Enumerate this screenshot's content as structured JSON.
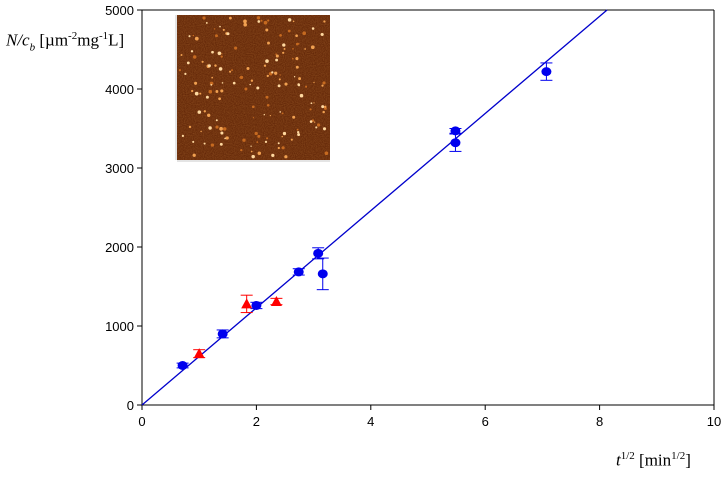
{
  "chart_data": {
    "type": "scatter",
    "xlabel": {
      "var": "t",
      "exp": "1/2",
      "unit_open": "[min",
      "unit_exp": "1/2",
      "unit_close": "]"
    },
    "ylabel": {
      "var": "N/c",
      "sub": "b",
      "unit_a": "[µm",
      "exp_a": "-2",
      "unit_b": "mg",
      "exp_b": "-1",
      "unit_c": "L]"
    },
    "xlim": [
      0,
      10
    ],
    "ylim": [
      0,
      5000
    ],
    "xticks": [
      "0",
      "2",
      "4",
      "6",
      "8",
      "10"
    ],
    "yticks": [
      "0",
      "1000",
      "2000",
      "3000",
      "4000",
      "5000"
    ],
    "grid": false,
    "series": [
      {
        "marker": "circle",
        "color": "#0000ee",
        "points": [
          {
            "x": 0.71,
            "y": 500,
            "err": 30
          },
          {
            "x": 1.41,
            "y": 900,
            "err": 50
          },
          {
            "x": 2.0,
            "y": 1260,
            "err": 40
          },
          {
            "x": 2.74,
            "y": 1685,
            "err": 40
          },
          {
            "x": 3.08,
            "y": 1920,
            "err": 70
          },
          {
            "x": 3.16,
            "y": 1660,
            "err": 200
          },
          {
            "x": 5.48,
            "y": 3470,
            "err": 30
          },
          {
            "x": 5.48,
            "y": 3320,
            "err": 110
          },
          {
            "x": 7.07,
            "y": 4220,
            "err": 110
          }
        ]
      },
      {
        "marker": "triangle",
        "color": "#ff0000",
        "points": [
          {
            "x": 1.0,
            "y": 650,
            "err": 50
          },
          {
            "x": 1.83,
            "y": 1280,
            "err": 110
          },
          {
            "x": 2.35,
            "y": 1310,
            "err": 40
          }
        ]
      }
    ],
    "fit_line": {
      "color": "#0000cc",
      "x": [
        0,
        8.13
      ],
      "y": [
        0,
        5000
      ]
    },
    "inset": {
      "content": "AFM height image",
      "colormap": "dark-brown-to-bright-orange"
    }
  }
}
